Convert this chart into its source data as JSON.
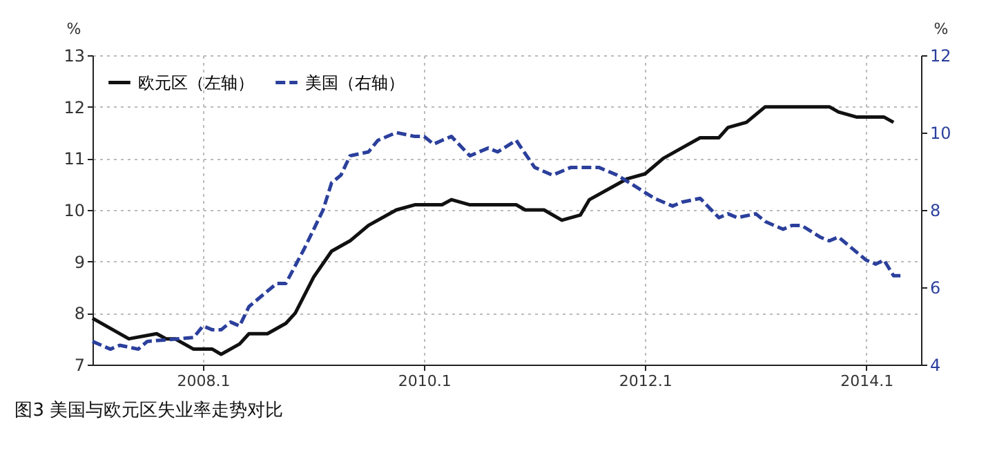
{
  "chart_data": {
    "type": "line",
    "title": "图3  美国与欧元区失业率走势对比",
    "ylabel": "%",
    "y2label": "%",
    "xlim": [
      "2007-01",
      "2014-07"
    ],
    "xticks": [
      {
        "value": "2008-01",
        "label": "2008.1"
      },
      {
        "value": "2010-01",
        "label": "2010.1"
      },
      {
        "value": "2012-01",
        "label": "2012.1"
      },
      {
        "value": "2014-01",
        "label": "2014.1"
      }
    ],
    "ylim": [
      7,
      13
    ],
    "yticks": [
      7,
      8,
      9,
      10,
      11,
      12,
      13
    ],
    "y2lim": [
      4,
      12
    ],
    "y2ticks": [
      4,
      6,
      8,
      10,
      12
    ],
    "grid": true,
    "legend": "top left",
    "series": [
      {
        "name": "欧元区（左轴）",
        "color": "#111111",
        "line_style": "solid",
        "x": [
          "2007-01",
          "2007-05",
          "2007-08",
          "2007-09",
          "2007-10",
          "2007-12",
          "2008-02",
          "2008-03",
          "2008-05",
          "2008-06",
          "2008-08",
          "2008-10",
          "2008-11",
          "2009-01",
          "2009-03",
          "2009-05",
          "2009-07",
          "2009-10",
          "2009-12",
          "2010-03",
          "2010-04",
          "2010-06",
          "2010-11",
          "2010-12",
          "2011-02",
          "2011-04",
          "2011-06",
          "2011-07",
          "2011-11",
          "2012-01",
          "2012-03",
          "2012-05",
          "2012-07",
          "2012-09",
          "2012-10",
          "2012-12",
          "2013-02",
          "2013-09",
          "2013-10",
          "2013-12",
          "2014-03",
          "2014-04"
        ],
        "values": [
          7.9,
          7.5,
          7.6,
          7.5,
          7.5,
          7.3,
          7.3,
          7.2,
          7.4,
          7.6,
          7.6,
          7.8,
          8.0,
          8.7,
          9.2,
          9.4,
          9.7,
          10.0,
          10.1,
          10.1,
          10.2,
          10.1,
          10.1,
          10.0,
          10.0,
          9.8,
          9.9,
          10.2,
          10.6,
          10.7,
          11.0,
          11.2,
          11.4,
          11.4,
          11.6,
          11.7,
          12.0,
          12.0,
          11.9,
          11.8,
          11.8,
          11.7
        ]
      },
      {
        "name": "美国（右轴）",
        "color": "#2b3f9c",
        "line_style": "dashed",
        "axis": "y2",
        "x": [
          "2007-01",
          "2007-03",
          "2007-04",
          "2007-06",
          "2007-07",
          "2007-12",
          "2008-01",
          "2008-02",
          "2008-03",
          "2008-04",
          "2008-05",
          "2008-06",
          "2008-08",
          "2008-09",
          "2008-10",
          "2008-12",
          "2009-02",
          "2009-03",
          "2009-04",
          "2009-05",
          "2009-07",
          "2009-08",
          "2009-10",
          "2009-12",
          "2010-01",
          "2010-02",
          "2010-03",
          "2010-04",
          "2010-06",
          "2010-08",
          "2010-09",
          "2010-11",
          "2011-01",
          "2011-03",
          "2011-04",
          "2011-05",
          "2011-08",
          "2011-10",
          "2012-02",
          "2012-04",
          "2012-05",
          "2012-07",
          "2012-09",
          "2012-10",
          "2012-11",
          "2013-01",
          "2013-02",
          "2013-04",
          "2013-05",
          "2013-06",
          "2013-08",
          "2013-09",
          "2013-10",
          "2014-01",
          "2014-02",
          "2014-03",
          "2014-04",
          "2014-05"
        ],
        "values": [
          4.6,
          4.4,
          4.5,
          4.4,
          4.6,
          4.7,
          5.0,
          4.9,
          4.9,
          5.1,
          5.0,
          5.5,
          5.9,
          6.1,
          6.1,
          7.0,
          8.0,
          8.7,
          8.9,
          9.4,
          9.5,
          9.8,
          10.0,
          9.9,
          9.9,
          9.7,
          9.8,
          9.9,
          9.4,
          9.6,
          9.5,
          9.8,
          9.1,
          8.9,
          9.0,
          9.1,
          9.1,
          8.9,
          8.3,
          8.1,
          8.2,
          8.3,
          7.8,
          7.9,
          7.8,
          7.9,
          7.7,
          7.5,
          7.6,
          7.6,
          7.3,
          7.2,
          7.3,
          6.7,
          6.6,
          6.7,
          6.3,
          6.3
        ]
      }
    ]
  }
}
